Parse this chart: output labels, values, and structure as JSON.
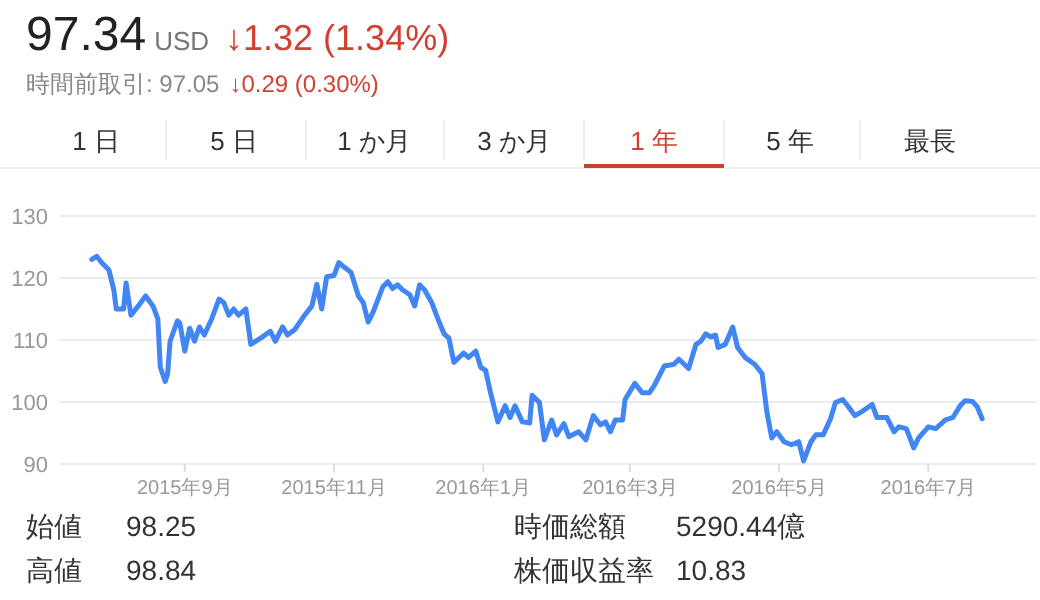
{
  "chart_data": {
    "type": "line",
    "annotations": [
      "97.34",
      "USD",
      "↓1.32 (1.34%)",
      "時間前取引: 97.05",
      "↓0.29 (0.30%)",
      "1 日",
      "5 日",
      "1 か月",
      "3 か月",
      "1 年",
      "5 年",
      "最長",
      "始値",
      "98.25",
      "時価総額",
      "5290.44億",
      "高値",
      "98.84",
      "株価収益率",
      "10.83"
    ],
    "x": [
      "2015-07-25",
      "2015-07-27",
      "2015-07-29",
      "2015-08-01",
      "2015-08-03",
      "2015-08-04",
      "2015-08-07",
      "2015-08-08",
      "2015-08-10",
      "2015-08-13",
      "2015-08-16",
      "2015-08-19",
      "2015-08-21",
      "2015-08-22",
      "2015-08-24",
      "2015-08-25",
      "2015-08-26",
      "2015-08-29",
      "2015-08-30",
      "2015-09-01",
      "2015-09-03",
      "2015-09-05",
      "2015-09-07",
      "2015-09-09",
      "2015-09-12",
      "2015-09-15",
      "2015-09-17",
      "2015-09-19",
      "2015-09-21",
      "2015-09-23",
      "2015-09-26",
      "2015-09-28",
      "2015-10-02",
      "2015-10-06",
      "2015-10-08",
      "2015-10-11",
      "2015-10-13",
      "2015-10-16",
      "2015-10-20",
      "2015-10-23",
      "2015-10-25",
      "2015-10-27",
      "2015-10-29",
      "2015-11-01",
      "2015-11-03",
      "2015-11-05",
      "2015-11-08",
      "2015-11-11",
      "2015-11-13",
      "2015-11-15",
      "2015-11-17",
      "2015-11-21",
      "2015-11-23",
      "2015-11-25",
      "2015-11-27",
      "2015-11-29",
      "2015-12-02",
      "2015-12-04",
      "2015-12-06",
      "2015-12-08",
      "2015-12-11",
      "2015-12-14",
      "2015-12-16",
      "2015-12-18",
      "2015-12-20",
      "2015-12-24",
      "2015-12-26",
      "2015-12-29",
      "2015-12-31",
      "2016-01-02",
      "2016-01-04",
      "2016-01-07",
      "2016-01-10",
      "2016-01-12",
      "2016-01-14",
      "2016-01-17",
      "2016-01-20",
      "2016-01-21",
      "2016-01-24",
      "2016-01-26",
      "2016-01-29",
      "2016-01-31",
      "2016-02-03",
      "2016-02-05",
      "2016-02-09",
      "2016-02-12",
      "2016-02-15",
      "2016-02-18",
      "2016-02-20",
      "2016-02-22",
      "2016-02-24",
      "2016-02-27",
      "2016-02-28",
      "2016-03-03",
      "2016-03-06",
      "2016-03-09",
      "2016-03-11",
      "2016-03-15",
      "2016-03-19",
      "2016-03-21",
      "2016-03-25",
      "2016-03-28",
      "2016-03-30",
      "2016-04-01",
      "2016-04-03",
      "2016-04-05",
      "2016-04-06",
      "2016-04-09",
      "2016-04-12",
      "2016-04-14",
      "2016-04-17",
      "2016-04-21",
      "2016-04-24",
      "2016-04-26",
      "2016-04-28",
      "2016-04-30",
      "2016-05-03",
      "2016-05-06",
      "2016-05-09",
      "2016-05-11",
      "2016-05-14",
      "2016-05-16",
      "2016-05-19",
      "2016-05-22",
      "2016-05-24",
      "2016-05-27",
      "2016-05-29",
      "2016-06-01",
      "2016-06-04",
      "2016-06-08",
      "2016-06-10",
      "2016-06-14",
      "2016-06-17",
      "2016-06-19",
      "2016-06-22",
      "2016-06-25",
      "2016-06-27",
      "2016-07-01",
      "2016-07-04",
      "2016-07-08",
      "2016-07-11",
      "2016-07-14",
      "2016-07-16",
      "2016-07-19",
      "2016-07-21",
      "2016-07-23"
    ],
    "series": [
      {
        "color": "#4285f4",
        "values": [
          123.0,
          123.5,
          122.5,
          121.3,
          118.1,
          115.0,
          115.0,
          119.2,
          114.0,
          115.5,
          117.1,
          115.5,
          113.4,
          105.6,
          103.3,
          104.6,
          109.8,
          113.1,
          112.7,
          108.2,
          111.9,
          109.8,
          112.1,
          110.8,
          113.4,
          116.6,
          116.0,
          114.0,
          115.0,
          114.0,
          115.0,
          109.3,
          110.3,
          111.4,
          109.8,
          112.1,
          110.8,
          111.7,
          114.0,
          115.5,
          119.0,
          115.0,
          120.2,
          120.4,
          122.5,
          121.8,
          120.9,
          117.1,
          116.0,
          112.9,
          114.5,
          118.6,
          119.4,
          118.3,
          118.9,
          118.1,
          117.3,
          115.5,
          118.9,
          118.1,
          116.0,
          112.9,
          111.0,
          110.3,
          106.4,
          107.9,
          107.2,
          108.2,
          105.6,
          105.1,
          101.5,
          96.8,
          99.4,
          97.5,
          99.4,
          96.8,
          96.6,
          101.1,
          99.9,
          93.9,
          97.1,
          94.7,
          96.5,
          94.4,
          95.2,
          93.9,
          97.8,
          96.3,
          96.8,
          95.2,
          97.1,
          97.1,
          100.4,
          103.0,
          101.5,
          101.5,
          102.7,
          105.8,
          106.1,
          106.9,
          105.4,
          109.3,
          109.8,
          111.0,
          110.5,
          110.8,
          108.8,
          109.3,
          112.1,
          108.8,
          107.2,
          106.1,
          104.6,
          98.3,
          94.2,
          95.2,
          93.6,
          93.1,
          93.6,
          90.5,
          93.6,
          94.7,
          94.7,
          97.3,
          99.9,
          100.4,
          99.4,
          97.8,
          98.5,
          99.6,
          97.5,
          97.5,
          95.2,
          96.0,
          95.7,
          92.6,
          94.2,
          96.0,
          95.7,
          97.1,
          97.5,
          99.4,
          100.2,
          100.1,
          99.2,
          97.3
        ]
      }
    ],
    "xlim": [
      "2015-07-12",
      "2016-08-14"
    ],
    "xticks": [
      {
        "value": "2015-09-01",
        "label": "2015年9月"
      },
      {
        "value": "2015-11-01",
        "label": "2015年11月"
      },
      {
        "value": "2016-01-01",
        "label": "2016年1月"
      },
      {
        "value": "2016-03-01",
        "label": "2016年3月"
      },
      {
        "value": "2016-05-01",
        "label": "2016年5月"
      },
      {
        "value": "2016-07-01",
        "label": "2016年7月"
      }
    ],
    "ylim": [
      90,
      130
    ],
    "yticks": [
      90,
      100,
      110,
      120,
      130
    ],
    "grid": "y"
  }
}
